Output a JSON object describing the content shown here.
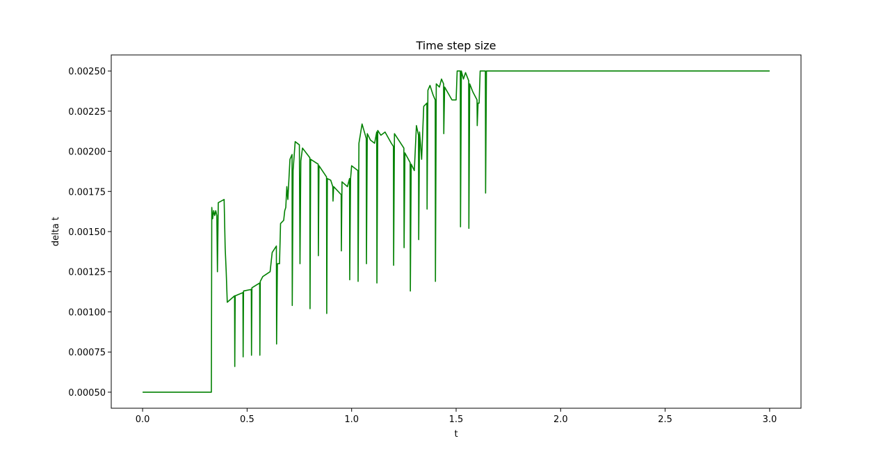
{
  "chart_data": {
    "type": "line",
    "title": "Time step size",
    "x_label": "t",
    "y_label": "delta t",
    "color": "#008000",
    "grid": false,
    "x": [
      0,
      0.329,
      0.331,
      0.335,
      0.34,
      0.345,
      0.35,
      0.355,
      0.358,
      0.362,
      0.39,
      0.395,
      0.4,
      0.405,
      0.44,
      0.441,
      0.443,
      0.48,
      0.481,
      0.483,
      0.52,
      0.521,
      0.523,
      0.56,
      0.561,
      0.563,
      0.575,
      0.61,
      0.62,
      0.64,
      0.641,
      0.645,
      0.655,
      0.66,
      0.675,
      0.68,
      0.685,
      0.69,
      0.695,
      0.705,
      0.715,
      0.716,
      0.72,
      0.73,
      0.75,
      0.753,
      0.757,
      0.765,
      0.8,
      0.801,
      0.804,
      0.84,
      0.841,
      0.844,
      0.88,
      0.881,
      0.884,
      0.9,
      0.91,
      0.911,
      0.914,
      0.95,
      0.951,
      0.954,
      0.98,
      0.99,
      0.991,
      0.995,
      1.0,
      1.02,
      1.03,
      1.031,
      1.035,
      1.05,
      1.07,
      1.071,
      1.075,
      1.09,
      1.11,
      1.12,
      1.121,
      1.125,
      1.14,
      1.16,
      1.19,
      1.2,
      1.201,
      1.205,
      1.25,
      1.251,
      1.255,
      1.28,
      1.281,
      1.285,
      1.3,
      1.31,
      1.32,
      1.321,
      1.325,
      1.335,
      1.345,
      1.36,
      1.361,
      1.365,
      1.375,
      1.39,
      1.4,
      1.401,
      1.405,
      1.42,
      1.43,
      1.44,
      1.441,
      1.445,
      1.48,
      1.5,
      1.505,
      1.52,
      1.521,
      1.525,
      1.535,
      1.545,
      1.56,
      1.561,
      1.565,
      1.58,
      1.6,
      1.601,
      1.605,
      1.61,
      1.615,
      1.64,
      1.641,
      1.645,
      3.0
    ],
    "values": [
      0.0005,
      0.0005,
      0.00165,
      0.00158,
      0.00163,
      0.0016,
      0.00163,
      0.0016,
      0.00125,
      0.00168,
      0.0017,
      0.0014,
      0.00125,
      0.00106,
      0.0011,
      0.00066,
      0.0011,
      0.00112,
      0.00072,
      0.00113,
      0.00114,
      0.00073,
      0.00115,
      0.00118,
      0.00073,
      0.00119,
      0.00122,
      0.00125,
      0.00137,
      0.00141,
      0.0008,
      0.0013,
      0.0013,
      0.00155,
      0.00157,
      0.00163,
      0.00165,
      0.00178,
      0.0017,
      0.00195,
      0.00198,
      0.00104,
      0.00188,
      0.00206,
      0.00204,
      0.0013,
      0.00194,
      0.00202,
      0.00196,
      0.00102,
      0.00195,
      0.00192,
      0.00135,
      0.00191,
      0.00184,
      0.00099,
      0.00183,
      0.00182,
      0.00178,
      0.00169,
      0.00178,
      0.00173,
      0.00138,
      0.00181,
      0.00178,
      0.00183,
      0.0012,
      0.00183,
      0.00191,
      0.00189,
      0.00188,
      0.00119,
      0.00205,
      0.00217,
      0.00208,
      0.0013,
      0.00211,
      0.00207,
      0.00205,
      0.00212,
      0.00118,
      0.00213,
      0.0021,
      0.00212,
      0.00205,
      0.00203,
      0.00129,
      0.00211,
      0.00202,
      0.0014,
      0.00199,
      0.00193,
      0.00113,
      0.00192,
      0.00188,
      0.00216,
      0.0021,
      0.00145,
      0.00212,
      0.00195,
      0.00228,
      0.0023,
      0.00164,
      0.00238,
      0.00241,
      0.00235,
      0.00232,
      0.00119,
      0.00242,
      0.0024,
      0.00245,
      0.00242,
      0.00211,
      0.0024,
      0.00232,
      0.00232,
      0.0025,
      0.0025,
      0.00153,
      0.0025,
      0.00245,
      0.00249,
      0.00244,
      0.00152,
      0.00242,
      0.00237,
      0.00232,
      0.00216,
      0.0023,
      0.0023,
      0.0025,
      0.0025,
      0.00174,
      0.0025,
      0.0025
    ],
    "xlim": [
      -0.15,
      3.15
    ],
    "ylim": [
      0.0004,
      0.0026
    ],
    "xticks": [
      {
        "value": 0,
        "label": "0.0"
      },
      0.5,
      {
        "value": 1,
        "label": "1.0"
      },
      1.5,
      {
        "value": 2,
        "label": "2.0"
      },
      2.5,
      {
        "value": 3,
        "label": "3.0"
      }
    ],
    "yticks": [
      {
        "value": 0.0005,
        "label": "0.00050"
      },
      {
        "value": 0.00075,
        "label": "0.00075"
      },
      {
        "value": 0.001,
        "label": "0.00100"
      },
      {
        "value": 0.00125,
        "label": "0.00125"
      },
      {
        "value": 0.0015,
        "label": "0.00150"
      },
      {
        "value": 0.00175,
        "label": "0.00175"
      },
      {
        "value": 0.002,
        "label": "0.00200"
      },
      {
        "value": 0.00225,
        "label": "0.00225"
      },
      {
        "value": 0.0025,
        "label": "0.00250"
      }
    ]
  }
}
